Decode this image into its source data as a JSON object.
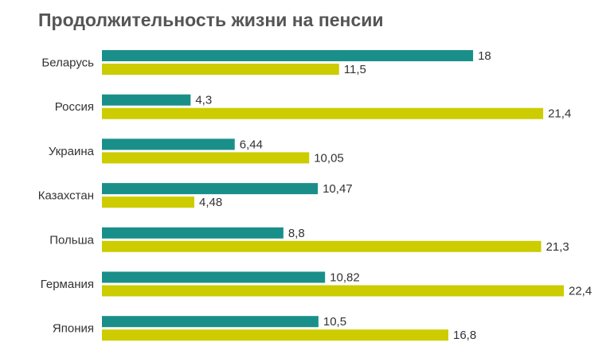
{
  "chart_data": {
    "type": "bar",
    "orientation": "horizontal",
    "title": "Продолжительность жизни на пенсии",
    "categories": [
      "Беларусь",
      "Россия",
      "Украина",
      "Казахстан",
      "Польша",
      "Германия",
      "Япония"
    ],
    "series": [
      {
        "color": "#1a8f8a",
        "values": [
          18,
          4.3,
          6.44,
          10.47,
          8.8,
          10.82,
          10.5
        ],
        "labels": [
          "18",
          "4,3",
          "6,44",
          "10,47",
          "8,8",
          "10,82",
          "10,5"
        ]
      },
      {
        "color": "#cccc00",
        "values": [
          11.5,
          21.4,
          10.05,
          4.48,
          21.3,
          22.4,
          16.8
        ],
        "labels": [
          "11,5",
          "21,4",
          "10,05",
          "4,48",
          "21,3",
          "22,4",
          "16,8"
        ]
      }
    ],
    "xlim": [
      0,
      22.4
    ],
    "grid": false,
    "legend": "none"
  }
}
